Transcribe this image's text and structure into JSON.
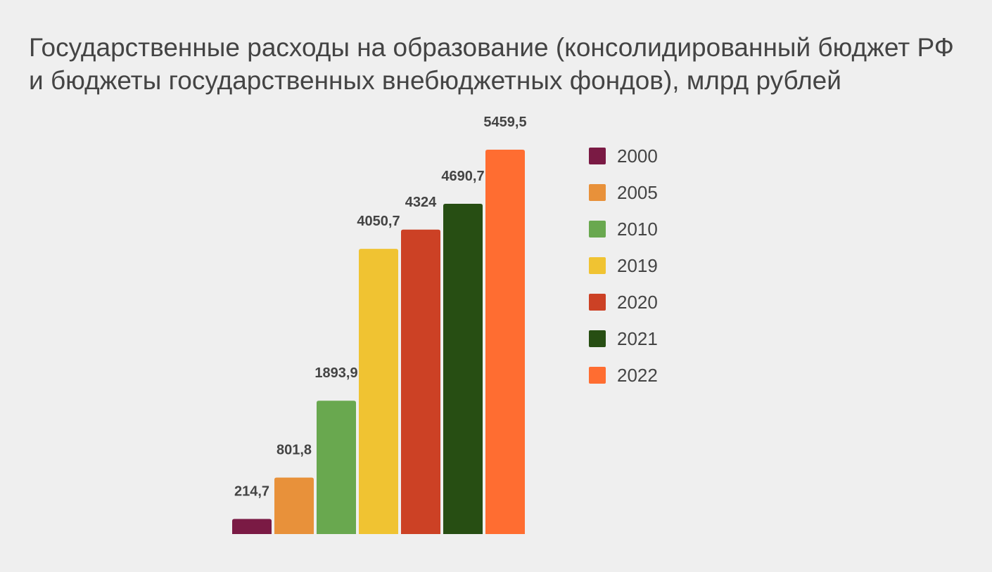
{
  "chart_data": {
    "type": "bar",
    "title": "Государственные расходы на образование (консолидированный бюджет РФ и бюджеты государственных внебюджетных фондов), млрд рублей",
    "categories": [
      "2000",
      "2005",
      "2010",
      "2019",
      "2020",
      "2021",
      "2022"
    ],
    "values": [
      214.7,
      801.8,
      1893.9,
      4050.7,
      4324,
      4690.7,
      5459.5
    ],
    "value_labels": [
      "214,7",
      "801,8",
      "1893,9",
      "4050,7",
      "4324",
      "4690,7",
      "5459,5"
    ],
    "colors": [
      "#7a1a44",
      "#e8913a",
      "#69a84f",
      "#f0c332",
      "#cc4125",
      "#274e13",
      "#ff6d31"
    ],
    "legend": {
      "position": "right",
      "entries": [
        "2000",
        "2005",
        "2010",
        "2019",
        "2020",
        "2021",
        "2022"
      ]
    },
    "ylim": [
      0,
      5500
    ],
    "grid": false,
    "xlabel": "",
    "ylabel": ""
  }
}
